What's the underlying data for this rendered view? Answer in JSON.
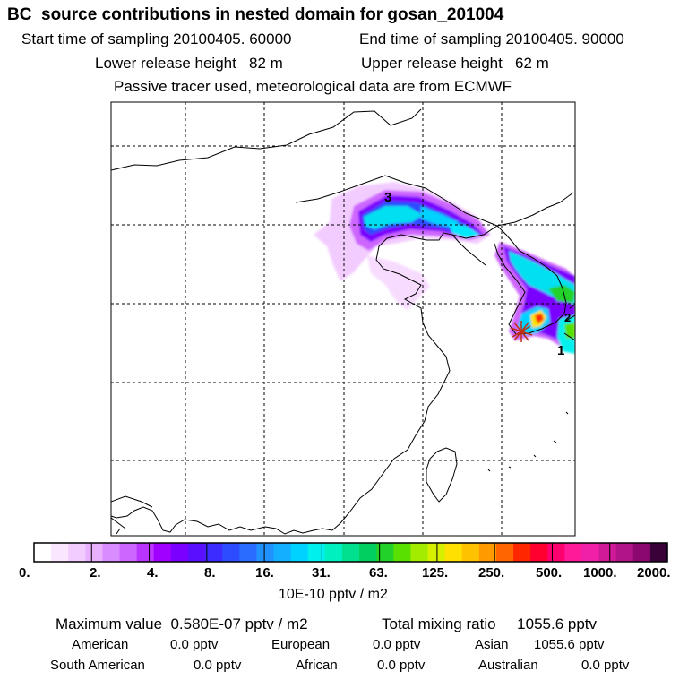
{
  "header": {
    "title": "BC  source contributions in nested domain for gosan_201004",
    "start_time": "Start time of sampling 20100405. 60000",
    "end_time": "End time of sampling 20100405. 90000",
    "lower_release": "Lower release height   82 m",
    "upper_release": "Upper release height   62 m",
    "tracer_note": "Passive tracer used, meteorological data are from ECMWF"
  },
  "map": {
    "labels": {
      "plume_3": "3",
      "plume_2": "2",
      "plume_1": "1"
    }
  },
  "colorbar": {
    "colors": [
      "#ffffff",
      "#fbe6ff",
      "#f3ccff",
      "#e9b0ff",
      "#d98cff",
      "#cd66ff",
      "#bb33ff",
      "#a000ff",
      "#7a00ff",
      "#5a10ff",
      "#3c2cff",
      "#2d4cff",
      "#2a6cff",
      "#2191ff",
      "#14b0ff",
      "#00d2ff",
      "#00f0ee",
      "#00f0c0",
      "#00e08f",
      "#00d060",
      "#22d12a",
      "#59e000",
      "#a3ec00",
      "#d6f000",
      "#ffe000",
      "#ffc200",
      "#ff9a00",
      "#ff6600",
      "#ff2600",
      "#ff0030",
      "#ff0070",
      "#ff1a9a",
      "#f020a8",
      "#d01a98",
      "#b01488",
      "#8a0870",
      "#3a0038"
    ],
    "ticks": [
      "0.",
      "2.",
      "4.",
      "8.",
      "16.",
      "31.",
      "63.",
      "125.",
      "250.",
      "500.",
      "1000.",
      "2000."
    ],
    "units": "10E-10 pptv / m2"
  },
  "summary": {
    "max_value": "Maximum value  0.580E-07 pptv / m2",
    "total_mixing": "Total mixing ratio     1055.6 pptv",
    "regions": [
      {
        "name": "American",
        "value": "0.0 pptv"
      },
      {
        "name": "European",
        "value": "0.0 pptv"
      },
      {
        "name": "Asian",
        "value": "1055.6 pptv"
      },
      {
        "name": "South American",
        "value": "0.0 pptv"
      },
      {
        "name": "African",
        "value": "0.0 pptv"
      },
      {
        "name": "Australian",
        "value": "0.0 pptv"
      }
    ]
  }
}
